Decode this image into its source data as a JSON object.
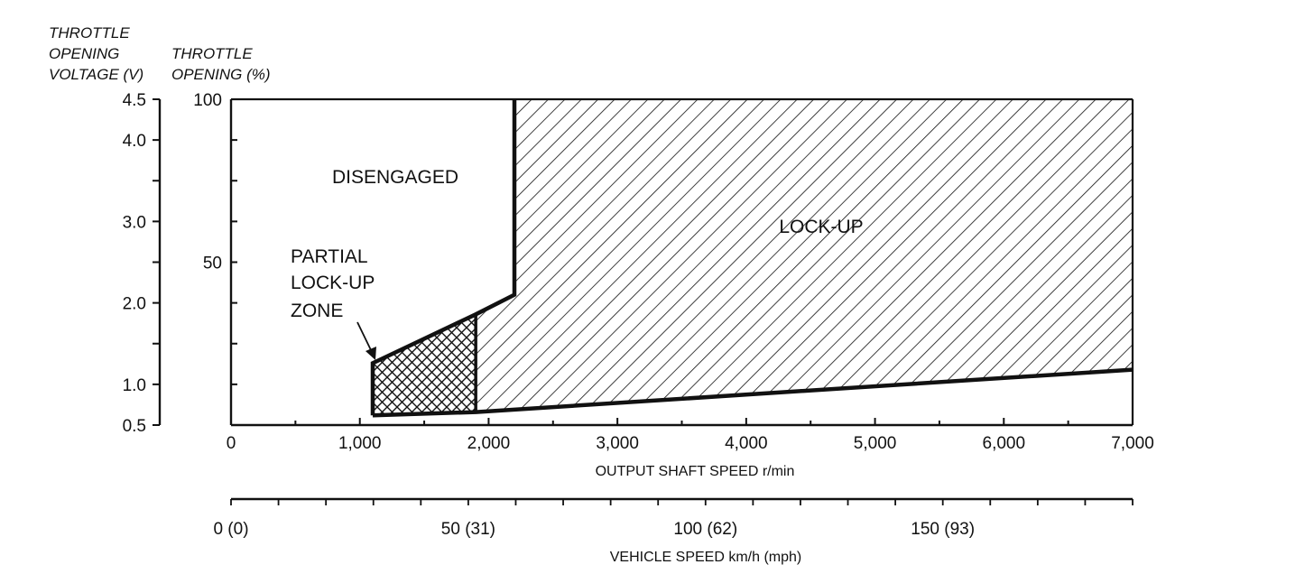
{
  "chart_data": {
    "type": "area",
    "title": "",
    "left_axis_label": [
      "THROTTLE",
      "OPENING",
      "VOLTAGE (V)"
    ],
    "left_axis_ticks": [
      "4.5",
      "4.0",
      "3.0",
      "2.0",
      "1.0",
      "0.5"
    ],
    "left_axis_tick_values": [
      4.5,
      4.0,
      3.0,
      2.0,
      1.0,
      0.5
    ],
    "right_axis_label": [
      "THROTTLE",
      "OPENING (%)"
    ],
    "right_axis_ticks": [
      "100",
      "50"
    ],
    "right_axis_tick_values": [
      100,
      50
    ],
    "ylim": [
      0,
      100
    ],
    "x_axis_label": "OUTPUT SHAFT SPEED r/min",
    "x_ticks": [
      "0",
      "1,000",
      "2,000",
      "3,000",
      "4,000",
      "5,000",
      "6,000",
      "7,000"
    ],
    "x_tick_values": [
      0,
      1000,
      2000,
      3000,
      4000,
      5000,
      6000,
      7000
    ],
    "xlim": [
      0,
      7000
    ],
    "speed_axis_label": "VEHICLE SPEED km/h (mph)",
    "speed_ticks": [
      "0 (0)",
      "50 (31)",
      "100 (62)",
      "150 (93)"
    ],
    "speed_tick_values": [
      0,
      50,
      100,
      150
    ],
    "speed_max": 190,
    "regions": [
      {
        "name": "LOCK-UP",
        "label": "LOCK-UP",
        "polygon": [
          [
            1900,
            4
          ],
          [
            1900,
            34
          ],
          [
            2200,
            40
          ],
          [
            2200,
            100
          ],
          [
            7000,
            100
          ],
          [
            7000,
            17
          ],
          [
            1900,
            4
          ]
        ]
      },
      {
        "name": "PARTIAL LOCK-UP ZONE",
        "label_lines": [
          "PARTIAL",
          "LOCK-UP",
          "ZONE"
        ],
        "polygon": [
          [
            1100,
            3
          ],
          [
            1100,
            19
          ],
          [
            1900,
            34
          ],
          [
            1900,
            4
          ]
        ]
      },
      {
        "name": "DISENGAGED",
        "label": "DISENGAGED"
      }
    ]
  }
}
